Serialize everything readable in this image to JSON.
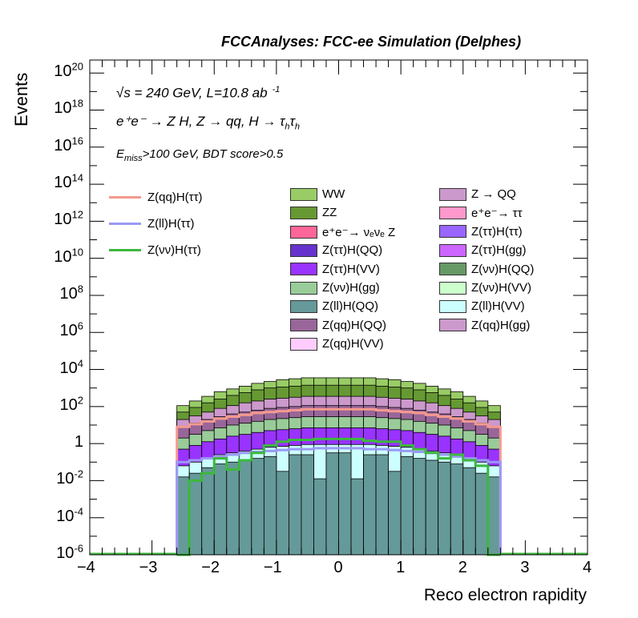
{
  "title": "FCCAnalyses: FCC-ee Simulation (Delphes)",
  "annotations": {
    "line1": "√s = 240 GeV, L=10.8 ab",
    "line1_sup": "-1",
    "line2": "e⁺e⁻ → Z H, Z → qq, H → τ",
    "line2_sub1": "h",
    "line2_mid": "τ",
    "line2_sub2": "h",
    "line3_pre": "E",
    "line3_sub": "miss",
    "line3_post": ">100 GeV, BDT score>0.5"
  },
  "chart_data": {
    "type": "histogram",
    "xlabel": "Reco electron rapidity",
    "ylabel": "Events",
    "xlim": [
      -4,
      4
    ],
    "ylim_log10": [
      -6,
      20.7
    ],
    "log_y": true,
    "x_ticks": [
      "−4",
      "−3",
      "−2",
      "−1",
      "0",
      "1",
      "2",
      "3",
      "4"
    ],
    "y_ticks": [
      {
        "base": "10",
        "exp": "20",
        "log": 20
      },
      {
        "base": "10",
        "exp": "18",
        "log": 18
      },
      {
        "base": "10",
        "exp": "16",
        "log": 16
      },
      {
        "base": "10",
        "exp": "14",
        "log": 14
      },
      {
        "base": "10",
        "exp": "12",
        "log": 12
      },
      {
        "base": "10",
        "exp": "10",
        "log": 10
      },
      {
        "base": "10",
        "exp": "8",
        "log": 8
      },
      {
        "base": "10",
        "exp": "6",
        "log": 6
      },
      {
        "base": "10",
        "exp": "4",
        "log": 4
      },
      {
        "base": "10",
        "exp": "2",
        "log": 2
      },
      {
        "base": "1",
        "exp": "",
        "log": 0
      },
      {
        "base": "10",
        "exp": "-2",
        "log": -2
      },
      {
        "base": "10",
        "exp": "-4",
        "log": -4
      },
      {
        "base": "10",
        "exp": "-6",
        "log": -6
      }
    ],
    "bin_edges_range": [
      -2.6,
      2.6
    ],
    "n_bins": 26,
    "stack_log10_tops": {
      "WW": [
        2.05,
        2.3,
        2.55,
        2.8,
        2.95,
        3.1,
        3.25,
        3.35,
        3.45,
        3.5,
        3.55,
        3.55,
        3.55,
        3.55,
        3.55,
        3.55,
        3.5,
        3.45,
        3.35,
        3.25,
        3.1,
        2.95,
        2.8,
        2.55,
        2.3,
        2.05
      ],
      "ZZ": [
        1.7,
        1.95,
        2.2,
        2.4,
        2.6,
        2.75,
        2.9,
        3.0,
        3.05,
        3.1,
        3.15,
        3.15,
        3.15,
        3.15,
        3.15,
        3.15,
        3.1,
        3.05,
        3.0,
        2.9,
        2.75,
        2.6,
        2.4,
        2.2,
        1.95,
        1.7
      ],
      "Z(qq)H(gg)": [
        1.3,
        1.5,
        1.7,
        1.9,
        2.05,
        2.2,
        2.3,
        2.4,
        2.45,
        2.5,
        2.55,
        2.55,
        2.55,
        2.55,
        2.55,
        2.55,
        2.5,
        2.45,
        2.4,
        2.3,
        2.2,
        2.05,
        1.9,
        1.7,
        1.5,
        1.3
      ],
      "Z(qq)H(QQ)": [
        0.9,
        1.1,
        1.3,
        1.45,
        1.6,
        1.7,
        1.8,
        1.9,
        1.95,
        2.0,
        2.05,
        2.05,
        2.05,
        2.05,
        2.05,
        2.05,
        2.0,
        1.95,
        1.9,
        1.8,
        1.7,
        1.6,
        1.45,
        1.3,
        1.1,
        0.9
      ],
      "Z(νν)H(gg)": [
        0.3,
        0.5,
        0.7,
        0.85,
        1.0,
        1.1,
        1.2,
        1.3,
        1.35,
        1.4,
        1.45,
        1.45,
        1.45,
        1.45,
        1.45,
        1.45,
        1.4,
        1.35,
        1.3,
        1.2,
        1.1,
        1.0,
        0.85,
        0.7,
        0.5,
        0.3
      ],
      "Z(ττ)H(VV)": [
        -0.3,
        -0.1,
        0.1,
        0.25,
        0.4,
        0.5,
        0.6,
        0.7,
        0.75,
        0.8,
        0.85,
        0.85,
        0.85,
        0.85,
        0.85,
        0.85,
        0.8,
        0.75,
        0.7,
        0.6,
        0.5,
        0.4,
        0.25,
        0.1,
        -0.1,
        -0.3
      ],
      "Z(ll)H(VV)": [
        -1.2,
        -1.0,
        -0.8,
        -0.6,
        -0.5,
        -0.4,
        -0.3,
        -0.2,
        -0.15,
        -0.1,
        -0.05,
        -0.05,
        -0.05,
        -0.05,
        -0.05,
        -0.05,
        -0.1,
        -0.15,
        -0.2,
        -0.3,
        -0.4,
        -0.5,
        -0.6,
        -0.8,
        -1.0,
        -1.2
      ],
      "Z(ll)H(QQ)": [
        -1.8,
        -1.6,
        -1.3,
        -1.1,
        -1.0,
        -0.9,
        -0.8,
        -0.7,
        -1.5,
        -0.6,
        -0.6,
        -1.9,
        -0.5,
        -0.5,
        -1.9,
        -0.6,
        -0.6,
        -1.5,
        -0.7,
        -0.8,
        -0.9,
        -1.0,
        -1.1,
        -1.3,
        -1.6,
        -1.8
      ]
    },
    "line_log10": {
      "Z(qq)H(ττ)": [
        0.9,
        1.05,
        1.2,
        1.35,
        1.45,
        1.55,
        1.65,
        1.7,
        1.75,
        1.8,
        1.85,
        1.85,
        1.85,
        1.85,
        1.85,
        1.85,
        1.8,
        1.75,
        1.7,
        1.65,
        1.55,
        1.45,
        1.35,
        1.2,
        1.05,
        0.9
      ],
      "Z(ll)H(ττ)": [
        -1.0,
        -0.9,
        -0.8,
        -0.7,
        -0.6,
        -0.5,
        -0.45,
        -0.4,
        -0.35,
        -0.3,
        -0.3,
        -0.25,
        -0.25,
        -0.25,
        -0.25,
        -0.3,
        -0.3,
        -0.35,
        -0.4,
        -0.45,
        -0.5,
        -0.6,
        -0.7,
        -0.8,
        -0.9,
        -1.0
      ],
      "Z(νν)H(ττ)": [
        -6,
        -2.0,
        -1.6,
        -0.8,
        -1.4,
        -0.9,
        -0.5,
        -0.1,
        0.1,
        0.2,
        0.2,
        0.25,
        0.25,
        0.25,
        0.25,
        0.15,
        0.1,
        0.1,
        -0.1,
        -0.3,
        -0.5,
        -0.8,
        -0.6,
        -0.9,
        -1.2,
        -6
      ]
    },
    "legend_lines": [
      {
        "label": "Z(qq)H(ττ)",
        "color": "#f59a8f"
      },
      {
        "label": "Z(ll)H(ττ)",
        "color": "#9a99f5"
      },
      {
        "label": "Z(νν)H(ττ)",
        "color": "#3cb83c"
      }
    ],
    "legend_fills_col1": [
      {
        "label": "WW",
        "color": "#99cc66"
      },
      {
        "label": "ZZ",
        "color": "#669933"
      },
      {
        "label": "e⁺e⁻→ νₑνₑ Z",
        "color": "#ff6699"
      },
      {
        "label": "Z(ττ)H(QQ)",
        "color": "#6633cc"
      },
      {
        "label": "Z(ττ)H(VV)",
        "color": "#9933ff"
      },
      {
        "label": "Z(νν)H(gg)",
        "color": "#99cc99"
      },
      {
        "label": "Z(ll)H(QQ)",
        "color": "#669999"
      },
      {
        "label": "Z(qq)H(QQ)",
        "color": "#996699"
      },
      {
        "label": "Z(qq)H(VV)",
        "color": "#ffccff"
      }
    ],
    "legend_fills_col2": [
      {
        "label": "Z → QQ",
        "color": "#cc99cc"
      },
      {
        "label": "e⁺e⁻→ ττ",
        "color": "#ff99cc"
      },
      {
        "label": "Z(ττ)H(ττ)",
        "color": "#9966ff"
      },
      {
        "label": "Z(ττ)H(gg)",
        "color": "#cc66ff"
      },
      {
        "label": "Z(νν)H(QQ)",
        "color": "#669966"
      },
      {
        "label": "Z(νν)H(VV)",
        "color": "#ccffcc"
      },
      {
        "label": "Z(ll)H(VV)",
        "color": "#ccffff"
      },
      {
        "label": "Z(qq)H(gg)",
        "color": "#cc99cc"
      }
    ]
  }
}
